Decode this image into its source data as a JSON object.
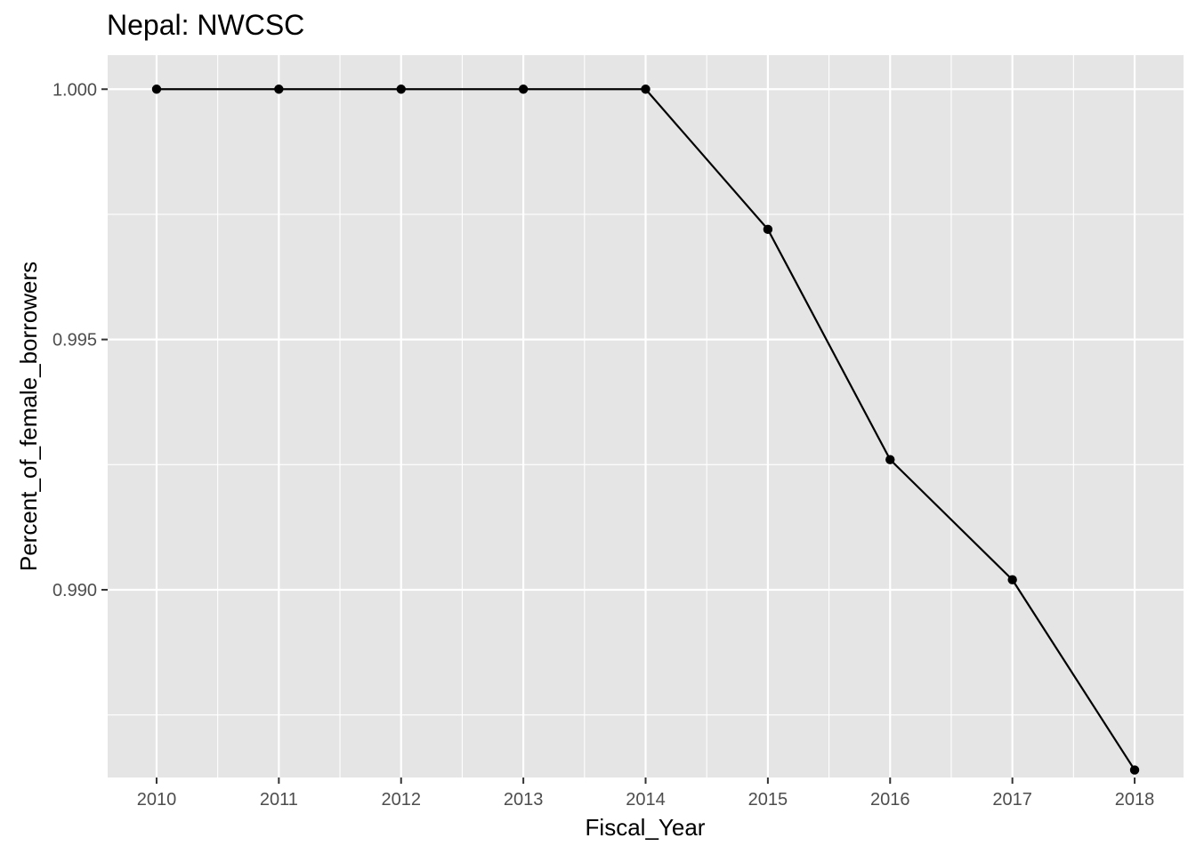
{
  "chart_data": {
    "type": "line",
    "title": "Nepal:  NWCSC",
    "xlabel": "Fiscal_Year",
    "ylabel": "Percent_of_female_borrowers",
    "x": [
      2010,
      2011,
      2012,
      2013,
      2014,
      2015,
      2016,
      2017,
      2018
    ],
    "series": [
      {
        "values": [
          1.0,
          1.0,
          1.0,
          1.0,
          1.0,
          0.9972,
          0.9926,
          0.9902,
          0.9864
        ]
      }
    ],
    "x_ticks": [
      "2010",
      "2011",
      "2012",
      "2013",
      "2014",
      "2015",
      "2016",
      "2017",
      "2018"
    ],
    "y_ticks": [
      "0.990",
      "0.995",
      "1.000"
    ],
    "y_tick_values": [
      0.99,
      0.995,
      1.0
    ],
    "ylim": [
      0.98625,
      1.00068
    ],
    "xlim": [
      2009.6,
      2018.4
    ],
    "grid": true,
    "legend": "none",
    "colors": {
      "panel": "#e5e5e5",
      "grid": "#ffffff",
      "line": "#000000",
      "point": "#000000"
    }
  }
}
